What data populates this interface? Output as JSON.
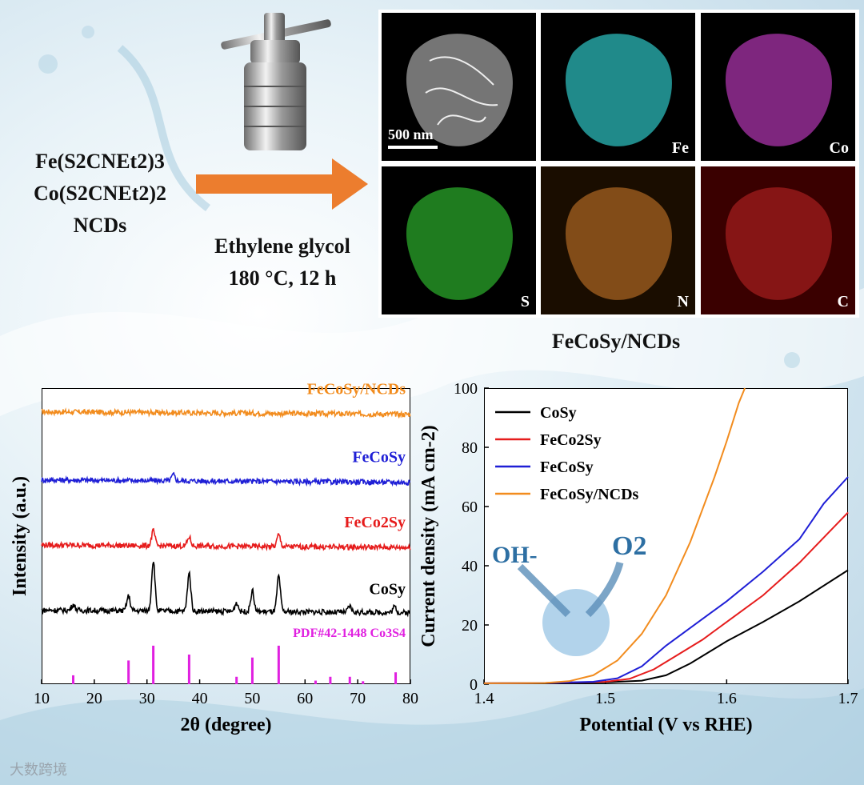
{
  "synthesis": {
    "reagents": [
      "Fe(S2CNEt2)3",
      "Co(S2CNEt2)2",
      "NCDs"
    ],
    "conditions": [
      "Ethylene glycol",
      "180 °C, 12 h"
    ]
  },
  "eds_mapping": {
    "scale_bar": "500 nm",
    "panels": [
      {
        "element": "",
        "color": "#ffffff"
      },
      {
        "element": "Fe",
        "color": "#2ec4c4"
      },
      {
        "element": "Co",
        "color": "#c23bc2"
      },
      {
        "element": "S",
        "color": "#2fbf2f"
      },
      {
        "element": "N",
        "color": "#d9822b"
      },
      {
        "element": "C",
        "color": "#d12a2a"
      }
    ],
    "sample_label": "FeCoSy/NCDs"
  },
  "chart_data": [
    {
      "type": "line",
      "xlabel": "2θ (degree)",
      "ylabel": "Intensity (a.u.)",
      "xlim": [
        10,
        80
      ],
      "xticks": [
        10,
        20,
        30,
        40,
        50,
        60,
        70,
        80
      ],
      "series": [
        {
          "name": "FeCoSy/NCDs",
          "color": "#f28c1e",
          "baseline": 0.92,
          "peaks": []
        },
        {
          "name": "FeCoSy",
          "color": "#1f1fd6",
          "baseline": 0.69,
          "peaks": [
            [
              35,
              0.02
            ]
          ]
        },
        {
          "name": "FeCo2Sy",
          "color": "#e61c1c",
          "baseline": 0.47,
          "peaks": [
            [
              31.2,
              0.05
            ],
            [
              38,
              0.03
            ],
            [
              55,
              0.04
            ]
          ]
        },
        {
          "name": "CoSy",
          "color": "#000000",
          "baseline": 0.25,
          "peaks": [
            [
              16,
              0.02
            ],
            [
              26.5,
              0.05
            ],
            [
              31.2,
              0.17
            ],
            [
              38,
              0.13
            ],
            [
              47,
              0.03
            ],
            [
              50,
              0.07
            ],
            [
              55,
              0.12
            ],
            [
              68.5,
              0.02
            ],
            [
              77,
              0.02
            ]
          ]
        }
      ],
      "reference": {
        "name": "PDF#42-1448 Co3S4",
        "color": "#e020e0",
        "lines": [
          [
            16,
            0.03
          ],
          [
            26.5,
            0.08
          ],
          [
            31.2,
            0.13
          ],
          [
            38,
            0.1
          ],
          [
            47,
            0.025
          ],
          [
            50,
            0.09
          ],
          [
            55,
            0.13
          ],
          [
            62,
            0.012
          ],
          [
            64.8,
            0.025
          ],
          [
            68.5,
            0.025
          ],
          [
            71,
            0.01
          ],
          [
            77.2,
            0.04
          ]
        ]
      }
    },
    {
      "type": "line",
      "xlabel": "Potential (V vs RHE)",
      "ylabel": "Current density (mA cm-2)",
      "xlim": [
        1.4,
        1.7
      ],
      "ylim": [
        0,
        100
      ],
      "xticks": [
        1.4,
        1.5,
        1.6,
        1.7
      ],
      "yticks": [
        0,
        20,
        40,
        60,
        80,
        100
      ],
      "legend": "top-left",
      "series": [
        {
          "name": "CoSy",
          "color": "#000000",
          "x": [
            1.4,
            1.45,
            1.5,
            1.53,
            1.55,
            1.57,
            1.6,
            1.63,
            1.66,
            1.7
          ],
          "y": [
            0.3,
            0.4,
            0.6,
            1.2,
            3,
            7,
            14.5,
            21,
            28,
            38.5
          ]
        },
        {
          "name": "FeCo2Sy",
          "color": "#e61c1c",
          "x": [
            1.4,
            1.45,
            1.5,
            1.52,
            1.54,
            1.56,
            1.58,
            1.6,
            1.63,
            1.66,
            1.7
          ],
          "y": [
            0.3,
            0.4,
            0.8,
            1.8,
            5,
            10,
            15,
            21,
            30,
            41,
            58
          ]
        },
        {
          "name": "FeCoSy",
          "color": "#1f1fd6",
          "x": [
            1.4,
            1.45,
            1.49,
            1.51,
            1.53,
            1.55,
            1.57,
            1.6,
            1.63,
            1.66,
            1.68,
            1.7
          ],
          "y": [
            0.3,
            0.4,
            0.8,
            2,
            6,
            13,
            19,
            28,
            38,
            49,
            61,
            70
          ]
        },
        {
          "name": "FeCoSy/NCDs",
          "color": "#f28c1e",
          "x": [
            1.4,
            1.45,
            1.47,
            1.49,
            1.51,
            1.53,
            1.55,
            1.57,
            1.59,
            1.6,
            1.61,
            1.615
          ],
          "y": [
            0.3,
            0.4,
            1,
            3,
            8,
            17,
            30,
            48,
            70,
            82,
            95,
            100
          ]
        }
      ],
      "inset": {
        "reactant": "OH-",
        "product": "O2"
      }
    }
  ],
  "watermark": "大数跨境"
}
